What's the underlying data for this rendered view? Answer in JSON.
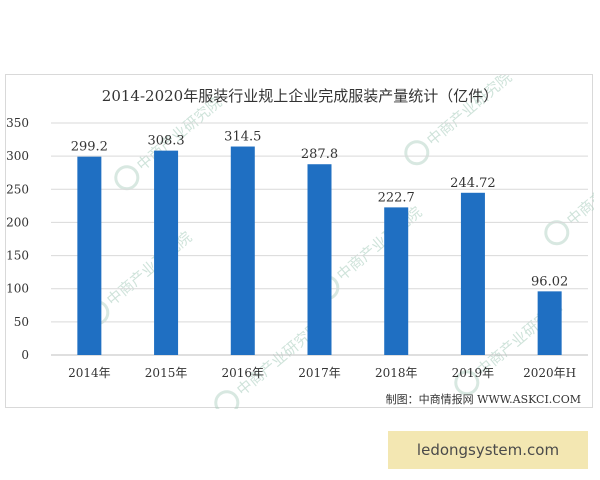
{
  "chart_data": {
    "type": "bar",
    "title": "2014-2020年服装行业规上企业完成服装产量统计（亿件）",
    "categories": [
      "2014年",
      "2015年",
      "2016年",
      "2017年",
      "2018年",
      "2019年",
      "2020年H"
    ],
    "values": [
      299.2,
      308.3,
      314.5,
      287.8,
      222.7,
      244.72,
      96.02
    ],
    "value_labels": [
      "299.2",
      "308.3",
      "314.5",
      "287.8",
      "222.7",
      "244.72",
      "96.02"
    ],
    "ylim": [
      0,
      350
    ],
    "yticks": [
      0,
      50,
      100,
      150,
      200,
      250,
      300,
      350
    ],
    "xlabel": "",
    "ylabel": "",
    "grid": true,
    "bar_color": "#1f6fc2",
    "grid_color": "#d9d9d9"
  },
  "source": "制图：中商情报网 WWW.ASKCI.COM",
  "watermark": "中商产业研究院",
  "footer": "ledongsystem.com"
}
